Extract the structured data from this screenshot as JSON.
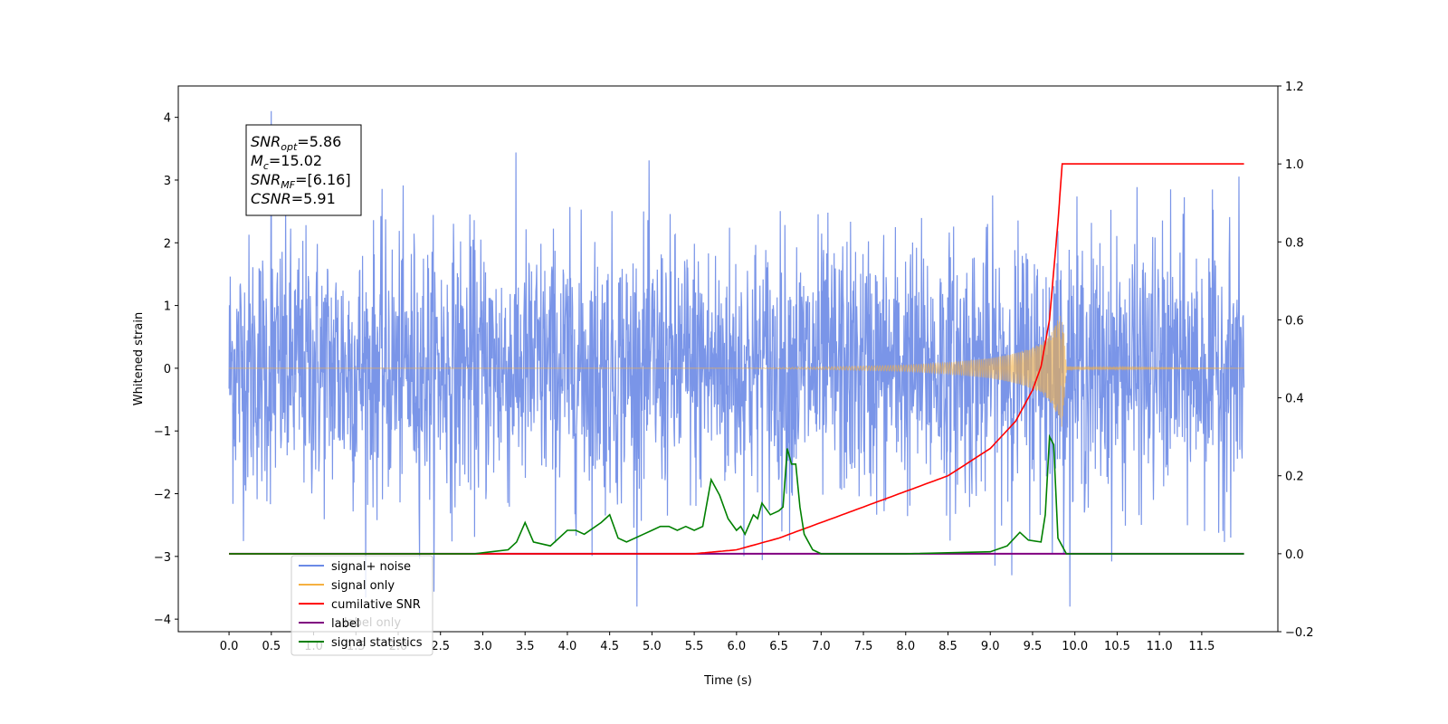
{
  "chart_data": {
    "type": "line",
    "xlabel": "Time (s)",
    "ylabel_left": "Whitened strain",
    "ylabel_right": "",
    "xlim": [
      -0.6,
      12.4
    ],
    "ylim_left": [
      -4.2,
      4.5
    ],
    "ylim_right": [
      -0.2,
      1.2
    ],
    "x_ticks": [
      "0.0",
      "0.5",
      "1.0",
      "1.5",
      "2.0",
      "2.5",
      "3.0",
      "3.5",
      "4.0",
      "4.5",
      "5.0",
      "5.5",
      "6.0",
      "6.5",
      "7.0",
      "7.5",
      "8.0",
      "8.5",
      "9.0",
      "9.5",
      "10.0",
      "10.5",
      "11.0",
      "11.5"
    ],
    "y_ticks_left": [
      "−4",
      "−3",
      "−2",
      "−1",
      "0",
      "1",
      "2",
      "3",
      "4"
    ],
    "y_ticks_right": [
      "−0.2",
      "0.0",
      "0.2",
      "0.4",
      "0.6",
      "0.8",
      "1.0",
      "1.2"
    ],
    "grid": false,
    "legend_position": "lower-left",
    "colors": {
      "signal_noise": "#6b8ae6",
      "signal_only": "#f5b041",
      "cumulative_snr": "#ff0000",
      "label": "#800080",
      "signal_statistics": "#008000"
    },
    "series": [
      {
        "name": "signal+ noise",
        "axis": "left",
        "description_values": "white noise, amplitude ~±1.5, peaks to ~4.1 at t=0.5",
        "x_range": [
          0.0,
          12.0
        ]
      },
      {
        "name": "signal only",
        "axis": "left",
        "x": [
          0.0,
          6.0,
          7.0,
          8.0,
          8.5,
          9.0,
          9.3,
          9.5,
          9.65,
          9.75,
          9.85,
          9.9,
          10.0,
          12.0
        ],
        "envelope": [
          0.0,
          0.0,
          0.02,
          0.05,
          0.09,
          0.16,
          0.24,
          0.33,
          0.45,
          0.62,
          0.95,
          0.03,
          0.02,
          0.0
        ]
      },
      {
        "name": "cumilative SNR",
        "axis": "right",
        "x": [
          0.0,
          5.5,
          6.0,
          6.5,
          7.0,
          7.5,
          8.0,
          8.5,
          9.0,
          9.3,
          9.5,
          9.6,
          9.7,
          9.8,
          9.85,
          9.86,
          12.0
        ],
        "values": [
          0.0,
          0.0,
          0.01,
          0.04,
          0.08,
          0.12,
          0.16,
          0.2,
          0.27,
          0.34,
          0.42,
          0.48,
          0.6,
          0.85,
          1.0,
          1.0,
          1.0
        ]
      },
      {
        "name": "label",
        "axis": "right",
        "x": [
          0.0,
          12.0
        ],
        "values": [
          0.0,
          0.0
        ]
      },
      {
        "name": "signal statistics",
        "axis": "right",
        "x": [
          0.0,
          2.9,
          3.1,
          3.3,
          3.4,
          3.5,
          3.6,
          3.8,
          4.0,
          4.1,
          4.2,
          4.4,
          4.5,
          4.6,
          4.7,
          4.9,
          5.0,
          5.1,
          5.2,
          5.3,
          5.4,
          5.5,
          5.6,
          5.7,
          5.8,
          5.9,
          6.0,
          6.05,
          6.1,
          6.2,
          6.25,
          6.3,
          6.4,
          6.5,
          6.55,
          6.6,
          6.65,
          6.7,
          6.75,
          6.8,
          6.9,
          7.0,
          7.2,
          8.0,
          9.0,
          9.2,
          9.35,
          9.45,
          9.6,
          9.65,
          9.7,
          9.75,
          9.8,
          9.9,
          10.2,
          11.0,
          12.0
        ],
        "values": [
          0.0,
          0.0,
          0.005,
          0.01,
          0.03,
          0.08,
          0.03,
          0.02,
          0.06,
          0.06,
          0.05,
          0.08,
          0.1,
          0.04,
          0.03,
          0.05,
          0.06,
          0.07,
          0.07,
          0.06,
          0.07,
          0.06,
          0.07,
          0.19,
          0.15,
          0.09,
          0.06,
          0.07,
          0.05,
          0.1,
          0.09,
          0.13,
          0.1,
          0.11,
          0.12,
          0.27,
          0.23,
          0.23,
          0.12,
          0.05,
          0.01,
          0.0,
          0.0,
          0.0,
          0.005,
          0.02,
          0.055,
          0.035,
          0.03,
          0.1,
          0.3,
          0.28,
          0.04,
          0.0,
          0.0,
          0.0,
          0.0
        ]
      }
    ],
    "annotation": {
      "lines": [
        {
          "base": "SNR",
          "sub": "opt",
          "rest": "=5.86"
        },
        {
          "base": "M",
          "sub": "c",
          "rest": "=15.02"
        },
        {
          "base": "SNR",
          "sub": "MF",
          "rest": "=[6.16]"
        },
        {
          "base": "CSNR",
          "sub": "",
          "rest": "=5.91"
        }
      ]
    },
    "legend": [
      "signal+ noise",
      "signal only",
      "cumilative SNR",
      "label",
      "signal statistics"
    ],
    "legend_overlap_text": "label only"
  }
}
